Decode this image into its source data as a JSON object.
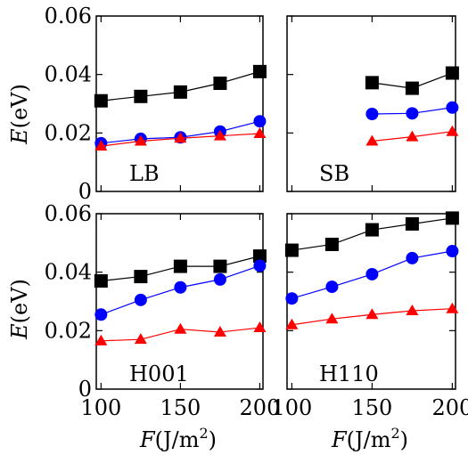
{
  "chart_data": [
    {
      "type": "line",
      "panel_label": "LB",
      "x": [
        100,
        125,
        150,
        175,
        200
      ],
      "series": [
        {
          "marker": "square",
          "color": "#000000",
          "values": [
            0.031,
            0.0325,
            0.034,
            0.037,
            0.041
          ]
        },
        {
          "marker": "circle",
          "color": "#0000ff",
          "values": [
            0.0165,
            0.018,
            0.0185,
            0.0205,
            0.024
          ]
        },
        {
          "marker": "triangle",
          "color": "#ff0000",
          "values": [
            0.0155,
            0.0172,
            0.0182,
            0.019,
            0.0198
          ]
        }
      ]
    },
    {
      "type": "line",
      "panel_label": "SB",
      "x": [
        150,
        175,
        200
      ],
      "series": [
        {
          "marker": "square",
          "color": "#000000",
          "values": [
            0.0372,
            0.0353,
            0.0405
          ]
        },
        {
          "marker": "circle",
          "color": "#0000ff",
          "values": [
            0.0265,
            0.0267,
            0.0287
          ]
        },
        {
          "marker": "triangle",
          "color": "#ff0000",
          "values": [
            0.0172,
            0.0187,
            0.0205
          ]
        }
      ]
    },
    {
      "type": "line",
      "panel_label": "H001",
      "x": [
        100,
        125,
        150,
        175,
        200
      ],
      "series": [
        {
          "marker": "square",
          "color": "#000000",
          "values": [
            0.037,
            0.0385,
            0.042,
            0.042,
            0.0455
          ]
        },
        {
          "marker": "circle",
          "color": "#0000ff",
          "values": [
            0.0255,
            0.0305,
            0.0348,
            0.0375,
            0.0422
          ]
        },
        {
          "marker": "triangle",
          "color": "#ff0000",
          "values": [
            0.0165,
            0.017,
            0.0205,
            0.0195,
            0.021
          ]
        }
      ]
    },
    {
      "type": "line",
      "panel_label": "H110",
      "x": [
        100,
        125,
        150,
        175,
        200
      ],
      "series": [
        {
          "marker": "square",
          "color": "#000000",
          "values": [
            0.0475,
            0.0495,
            0.0545,
            0.0565,
            0.0585
          ]
        },
        {
          "marker": "circle",
          "color": "#0000ff",
          "values": [
            0.031,
            0.035,
            0.0393,
            0.0448,
            0.0472
          ]
        },
        {
          "marker": "triangle",
          "color": "#ff0000",
          "values": [
            0.022,
            0.024,
            0.0255,
            0.0268,
            0.0275
          ]
        }
      ]
    }
  ],
  "axes": {
    "y_ticks": [
      0,
      0.02,
      0.04,
      0.06
    ],
    "y_tick_labels": [
      "0",
      "0.02",
      "0.04",
      "0.06"
    ],
    "ylim": [
      0,
      0.06
    ],
    "x_ticks": [
      100,
      150,
      200
    ],
    "x_tick_labels": [
      "100",
      "150",
      "200"
    ],
    "xlim": [
      97,
      202
    ],
    "ylabel_var": "E",
    "ylabel_unit": "(eV)",
    "xlabel_var": "F",
    "xlabel_unit": "(J/m",
    "xlabel_sup": "2",
    "xlabel_close": ")"
  }
}
